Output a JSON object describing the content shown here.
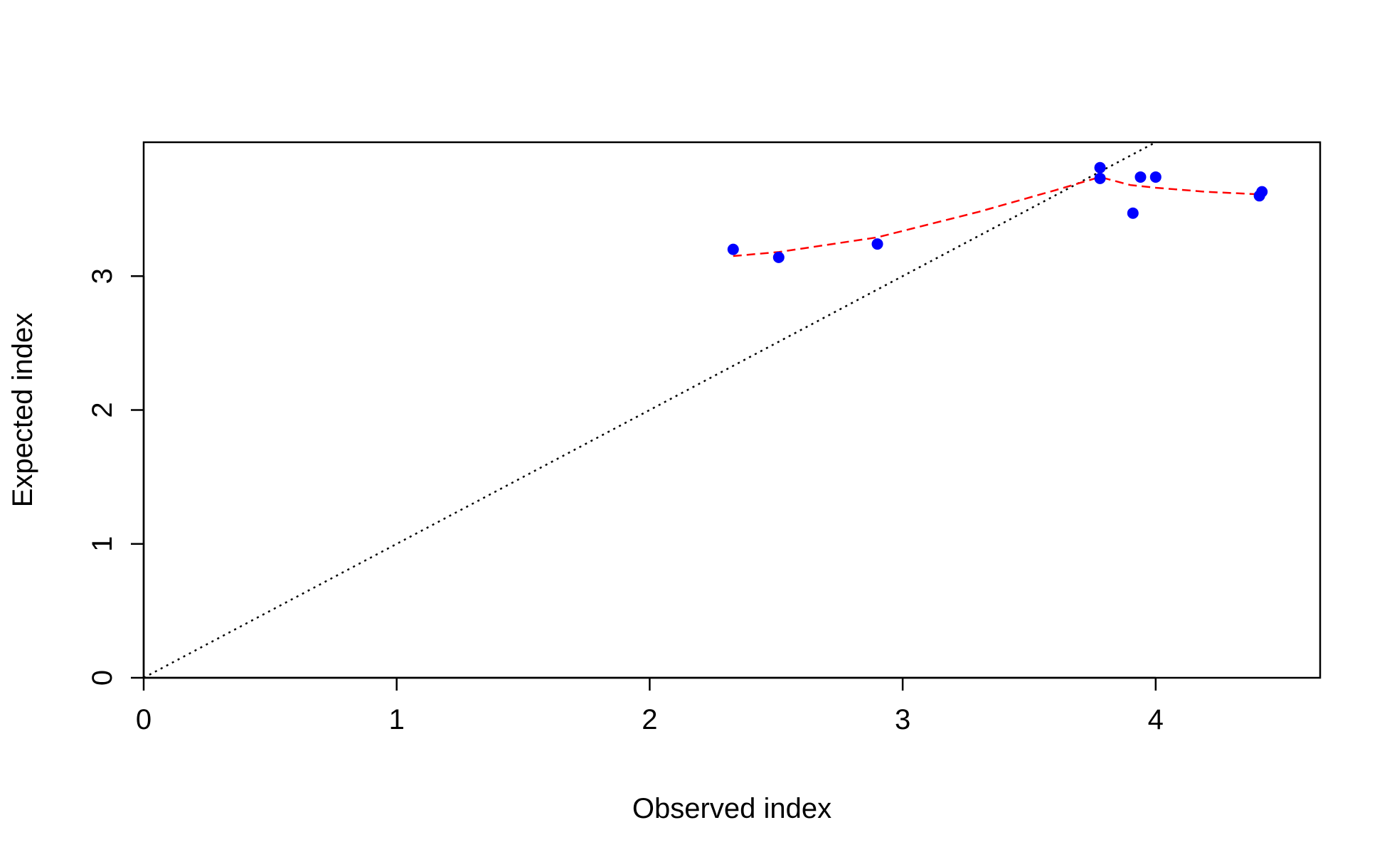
{
  "chart_data": {
    "type": "scatter",
    "title": "",
    "xlabel": "Observed index",
    "ylabel": "Expected index",
    "xlim": [
      0,
      4.65
    ],
    "ylim": [
      0,
      4.0
    ],
    "x_ticks": [
      0,
      1,
      2,
      3,
      4
    ],
    "y_ticks": [
      0,
      1,
      2,
      3
    ],
    "grid": false,
    "colors": {
      "points": "#0000ff",
      "smooth": "#ff0000",
      "reference": "#000000"
    },
    "points": [
      {
        "x": 2.33,
        "y": 3.2
      },
      {
        "x": 2.51,
        "y": 3.14
      },
      {
        "x": 2.9,
        "y": 3.24
      },
      {
        "x": 3.78,
        "y": 3.81
      },
      {
        "x": 3.78,
        "y": 3.73
      },
      {
        "x": 3.91,
        "y": 3.47
      },
      {
        "x": 3.94,
        "y": 3.74
      },
      {
        "x": 4.0,
        "y": 3.74
      },
      {
        "x": 4.41,
        "y": 3.6
      },
      {
        "x": 4.42,
        "y": 3.63
      }
    ],
    "smooth_line": [
      {
        "x": 2.33,
        "y": 3.15
      },
      {
        "x": 2.51,
        "y": 3.18
      },
      {
        "x": 2.9,
        "y": 3.29
      },
      {
        "x": 3.3,
        "y": 3.48
      },
      {
        "x": 3.6,
        "y": 3.64
      },
      {
        "x": 3.78,
        "y": 3.74
      },
      {
        "x": 3.9,
        "y": 3.68
      },
      {
        "x": 4.0,
        "y": 3.66
      },
      {
        "x": 4.2,
        "y": 3.63
      },
      {
        "x": 4.42,
        "y": 3.61
      }
    ],
    "reference_line": {
      "intercept": 0,
      "slope": 1,
      "style": "dotted"
    }
  }
}
